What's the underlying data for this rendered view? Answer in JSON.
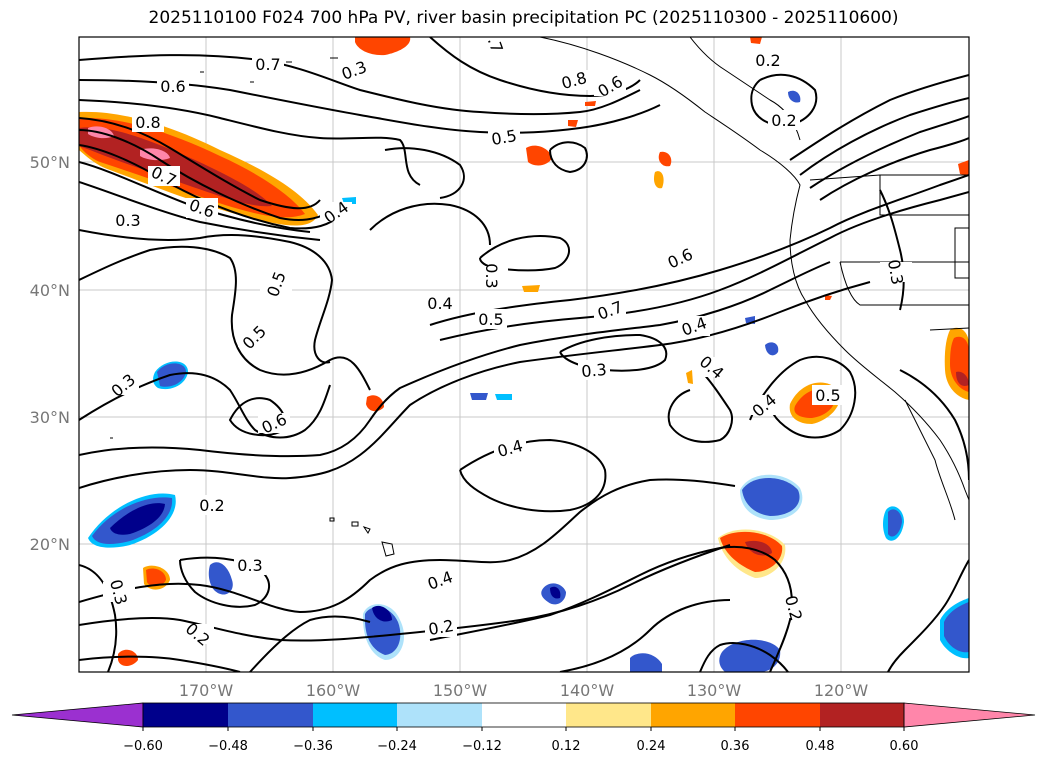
{
  "title": "2025110100 F024 700 hPa PV, river basin precipitation PC (2025110300 - 2025110600)",
  "lat_labels": [
    "50°N",
    "40°N",
    "30°N",
    "20°N"
  ],
  "lon_labels": [
    "170°W",
    "160°W",
    "150°W",
    "140°W",
    "130°W",
    "120°W"
  ],
  "contour_labels": [
    "0.7",
    "0.6",
    "0.8",
    "0.7",
    "0.6",
    "0.3",
    "0.4",
    "0.5",
    "0.5",
    "0.6",
    "0.3",
    "0.2",
    "0.3",
    "0.3",
    "0.2",
    "0.4",
    "0.2",
    "0.4",
    "0.3",
    "0.4",
    "0.5",
    "0.6",
    "0.7",
    "0.6",
    "0.8",
    "0.5",
    "0.4",
    "0.4",
    "0.5",
    "0.2",
    "0.2",
    "0.4",
    "0.3",
    "0.3",
    "0.2",
    "0.7",
    "0.3"
  ],
  "colorbar": {
    "ticks": [
      "−0.60",
      "−0.48",
      "−0.36",
      "−0.24",
      "−0.12",
      "0.12",
      "0.24",
      "0.36",
      "0.48",
      "0.60"
    ],
    "colors": [
      "#9b30d0",
      "#00008b",
      "#3357cc",
      "#00bfff",
      "#aee2fa",
      "#ffffff",
      "#ffe78a",
      "#ffa500",
      "#ff4500",
      "#b22222",
      "#ff86aa",
      "#ff86aa"
    ]
  },
  "chart_data": {
    "type": "map",
    "title": "2025110100 F024 700 hPa PV, river basin precipitation PC (2025110300 - 2025110600)",
    "variable_contours": "700 hPa PV",
    "variable_fill": "river basin precipitation PC",
    "lon_range": [
      "180°W",
      "110°W"
    ],
    "lat_range": [
      "10°N",
      "60°N"
    ],
    "contour_levels": [
      0.2,
      0.3,
      0.4,
      0.5,
      0.6,
      0.7,
      0.8
    ],
    "fill_levels": [
      -0.6,
      -0.48,
      -0.36,
      -0.24,
      -0.12,
      0.12,
      0.24,
      0.36,
      0.48,
      0.6
    ]
  }
}
